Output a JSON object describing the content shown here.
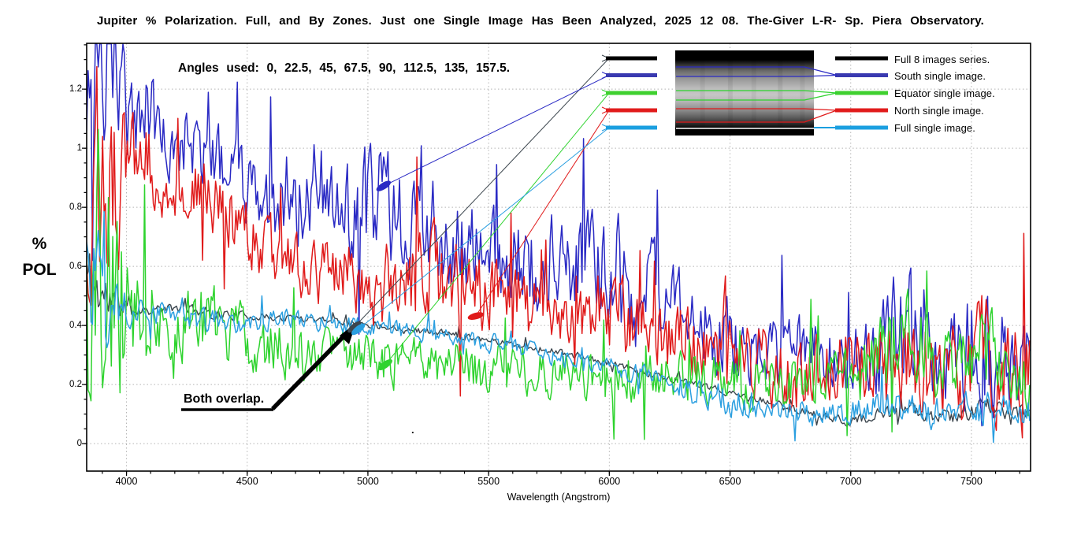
{
  "title": "Jupiter % Polarization. Full, and By Zones. Just one Single Image Has Been Analyzed, 2025 12 08. The-Giver L-R- Sp. Piera Observatory.",
  "annotations": {
    "angles_note": "Angles used: 0, 22.5, 45, 67.5, 90, 112.5, 135, 157.5.",
    "both_overlap": "Both overlap.",
    "stray_mark": "."
  },
  "axes": {
    "y_label_line1": "%",
    "y_label_line2": "POL",
    "x_label": "Wavelength (Angstrom)"
  },
  "chart_data": {
    "type": "line",
    "title": "Jupiter % Polarization, full disk and by zones, single image 2025 12 08",
    "xlabel": "Wavelength (Angstrom)",
    "ylabel": "% POL",
    "xlim": [
      3835,
      7745
    ],
    "ylim": [
      -0.093,
      1.355
    ],
    "x_ticks": [
      4000,
      4500,
      5000,
      5500,
      6000,
      6500,
      7000,
      7500
    ],
    "x_minor_step": 100,
    "y_ticks": [
      0,
      0.2,
      0.4,
      0.6,
      0.8,
      1,
      1.2
    ],
    "y_tick_labels": [
      "0",
      "0.2",
      "0.4",
      "0.6",
      "0.8",
      "1",
      "1.2"
    ],
    "y_minor_step": 0.05,
    "grid": true,
    "grid_color": "#b3b3b3",
    "legend_position": "top-right-inside",
    "series": [
      {
        "label": "Full 8 images series.",
        "color": "#000000",
        "line_color": "#3c464e",
        "anchors": [
          [
            3835,
            0.56,
            0.14
          ],
          [
            3900,
            0.5,
            0.1
          ],
          [
            3980,
            0.47,
            0.05
          ],
          [
            4060,
            0.455,
            0.02
          ],
          [
            4150,
            0.455,
            0.015
          ],
          [
            4250,
            0.46,
            0.015
          ],
          [
            4350,
            0.44,
            0.02
          ],
          [
            4450,
            0.435,
            0.015
          ],
          [
            4550,
            0.43,
            0.012
          ],
          [
            4650,
            0.425,
            0.012
          ],
          [
            4750,
            0.425,
            0.012
          ],
          [
            4850,
            0.42,
            0.012
          ],
          [
            4950,
            0.41,
            0.012
          ],
          [
            5050,
            0.4,
            0.012
          ],
          [
            5150,
            0.39,
            0.012
          ],
          [
            5250,
            0.38,
            0.012
          ],
          [
            5350,
            0.37,
            0.012
          ],
          [
            5450,
            0.36,
            0.012
          ],
          [
            5550,
            0.345,
            0.012
          ],
          [
            5650,
            0.33,
            0.012
          ],
          [
            5750,
            0.315,
            0.012
          ],
          [
            5850,
            0.3,
            0.012
          ],
          [
            5950,
            0.28,
            0.012
          ],
          [
            6050,
            0.26,
            0.012
          ],
          [
            6150,
            0.24,
            0.012
          ],
          [
            6250,
            0.22,
            0.012
          ],
          [
            6350,
            0.2,
            0.012
          ],
          [
            6450,
            0.18,
            0.012
          ],
          [
            6550,
            0.16,
            0.012
          ],
          [
            6650,
            0.14,
            0.015
          ],
          [
            6750,
            0.12,
            0.015
          ],
          [
            6850,
            0.1,
            0.015
          ],
          [
            6950,
            0.08,
            0.015
          ],
          [
            7050,
            0.08,
            0.02
          ],
          [
            7150,
            0.1,
            0.025
          ],
          [
            7250,
            0.11,
            0.025
          ],
          [
            7350,
            0.09,
            0.02
          ],
          [
            7450,
            0.09,
            0.025
          ],
          [
            7550,
            0.13,
            0.03
          ],
          [
            7650,
            0.11,
            0.025
          ],
          [
            7745,
            0.1,
            0.025
          ]
        ]
      },
      {
        "label": "South single image.",
        "color": "#3939b0",
        "line_color": "#2a2ac4",
        "anchors": [
          [
            3835,
            1.28,
            0.3
          ],
          [
            3900,
            1.22,
            0.28
          ],
          [
            3980,
            1.18,
            0.22
          ],
          [
            4060,
            1.12,
            0.15
          ],
          [
            4150,
            1.08,
            0.14
          ],
          [
            4250,
            1.02,
            0.14
          ],
          [
            4350,
            0.97,
            0.13
          ],
          [
            4450,
            0.9,
            0.12
          ],
          [
            4550,
            0.84,
            0.12
          ],
          [
            4650,
            0.85,
            0.18
          ],
          [
            4750,
            0.88,
            0.18
          ],
          [
            4850,
            0.82,
            0.16
          ],
          [
            4950,
            0.78,
            0.18
          ],
          [
            5050,
            0.8,
            0.2
          ],
          [
            5150,
            0.76,
            0.16
          ],
          [
            5250,
            0.68,
            0.14
          ],
          [
            5350,
            0.66,
            0.14
          ],
          [
            5450,
            0.68,
            0.15
          ],
          [
            5550,
            0.63,
            0.16
          ],
          [
            5650,
            0.62,
            0.18
          ],
          [
            5750,
            0.6,
            0.16
          ],
          [
            5850,
            0.61,
            0.15
          ],
          [
            5950,
            0.62,
            0.16
          ],
          [
            6050,
            0.58,
            0.26
          ],
          [
            6150,
            0.5,
            0.18
          ],
          [
            6250,
            0.47,
            0.13
          ],
          [
            6350,
            0.43,
            0.12
          ],
          [
            6450,
            0.38,
            0.13
          ],
          [
            6550,
            0.34,
            0.12
          ],
          [
            6650,
            0.31,
            0.12
          ],
          [
            6750,
            0.31,
            0.12
          ],
          [
            6850,
            0.31,
            0.11
          ],
          [
            6950,
            0.29,
            0.11
          ],
          [
            7050,
            0.29,
            0.12
          ],
          [
            7150,
            0.34,
            0.18
          ],
          [
            7250,
            0.4,
            0.26
          ],
          [
            7350,
            0.31,
            0.16
          ],
          [
            7450,
            0.33,
            0.2
          ],
          [
            7550,
            0.34,
            0.26
          ],
          [
            7650,
            0.28,
            0.14
          ],
          [
            7745,
            0.3,
            0.12
          ]
        ]
      },
      {
        "label": "Equator single image.",
        "color": "#3fd02f",
        "line_color": "#2ed32e",
        "anchors": [
          [
            3835,
            0.62,
            0.52
          ],
          [
            3900,
            0.55,
            0.45
          ],
          [
            3980,
            0.48,
            0.32
          ],
          [
            4060,
            0.46,
            0.16
          ],
          [
            4150,
            0.44,
            0.13
          ],
          [
            4250,
            0.41,
            0.12
          ],
          [
            4350,
            0.42,
            0.12
          ],
          [
            4450,
            0.37,
            0.1
          ],
          [
            4550,
            0.34,
            0.1
          ],
          [
            4650,
            0.32,
            0.09
          ],
          [
            4750,
            0.31,
            0.09
          ],
          [
            4850,
            0.3,
            0.08
          ],
          [
            4950,
            0.29,
            0.08
          ],
          [
            5050,
            0.27,
            0.08
          ],
          [
            5150,
            0.28,
            0.08
          ],
          [
            5250,
            0.28,
            0.08
          ],
          [
            5350,
            0.26,
            0.08
          ],
          [
            5450,
            0.26,
            0.08
          ],
          [
            5550,
            0.25,
            0.08
          ],
          [
            5650,
            0.25,
            0.08
          ],
          [
            5750,
            0.24,
            0.08
          ],
          [
            5850,
            0.23,
            0.08
          ],
          [
            5950,
            0.23,
            0.08
          ],
          [
            6050,
            0.25,
            0.1
          ],
          [
            6150,
            0.24,
            0.09
          ],
          [
            6250,
            0.22,
            0.08
          ],
          [
            6350,
            0.22,
            0.08
          ],
          [
            6450,
            0.22,
            0.08
          ],
          [
            6550,
            0.21,
            0.08
          ],
          [
            6650,
            0.2,
            0.09
          ],
          [
            6750,
            0.2,
            0.1
          ],
          [
            6850,
            0.21,
            0.1
          ],
          [
            6950,
            0.23,
            0.1
          ],
          [
            7050,
            0.26,
            0.12
          ],
          [
            7150,
            0.3,
            0.14
          ],
          [
            7250,
            0.36,
            0.15
          ],
          [
            7350,
            0.28,
            0.12
          ],
          [
            7450,
            0.28,
            0.13
          ],
          [
            7550,
            0.33,
            0.17
          ],
          [
            7650,
            0.26,
            0.12
          ],
          [
            7745,
            0.22,
            0.11
          ]
        ]
      },
      {
        "label": "North single image.",
        "color": "#e11b1b",
        "line_color": "#e01a1a",
        "anchors": [
          [
            3835,
            0.92,
            0.38
          ],
          [
            3900,
            0.9,
            0.34
          ],
          [
            3980,
            0.86,
            0.26
          ],
          [
            4060,
            0.98,
            0.14
          ],
          [
            4150,
            0.88,
            0.12
          ],
          [
            4250,
            0.86,
            0.11
          ],
          [
            4350,
            0.84,
            0.11
          ],
          [
            4450,
            0.76,
            0.12
          ],
          [
            4550,
            0.68,
            0.11
          ],
          [
            4650,
            0.62,
            0.1
          ],
          [
            4750,
            0.57,
            0.11
          ],
          [
            4850,
            0.55,
            0.12
          ],
          [
            4950,
            0.56,
            0.13
          ],
          [
            5050,
            0.54,
            0.15
          ],
          [
            5150,
            0.56,
            0.13
          ],
          [
            5250,
            0.58,
            0.18
          ],
          [
            5350,
            0.52,
            0.15
          ],
          [
            5450,
            0.51,
            0.13
          ],
          [
            5550,
            0.53,
            0.12
          ],
          [
            5650,
            0.47,
            0.13
          ],
          [
            5750,
            0.45,
            0.12
          ],
          [
            5850,
            0.46,
            0.12
          ],
          [
            5950,
            0.47,
            0.13
          ],
          [
            6050,
            0.43,
            0.14
          ],
          [
            6150,
            0.38,
            0.12
          ],
          [
            6250,
            0.35,
            0.12
          ],
          [
            6350,
            0.33,
            0.12
          ],
          [
            6450,
            0.3,
            0.12
          ],
          [
            6550,
            0.3,
            0.12
          ],
          [
            6650,
            0.27,
            0.12
          ],
          [
            6750,
            0.23,
            0.12
          ],
          [
            6850,
            0.24,
            0.12
          ],
          [
            6950,
            0.26,
            0.13
          ],
          [
            7050,
            0.24,
            0.15
          ],
          [
            7150,
            0.24,
            0.15
          ],
          [
            7250,
            0.28,
            0.16
          ],
          [
            7350,
            0.24,
            0.15
          ],
          [
            7450,
            0.22,
            0.16
          ],
          [
            7550,
            0.29,
            0.19
          ],
          [
            7650,
            0.26,
            0.16
          ],
          [
            7745,
            0.22,
            0.2
          ]
        ]
      },
      {
        "label": "Full single image.",
        "color": "#1b9fe0",
        "line_color": "#2b9fe0",
        "anchors": [
          [
            3835,
            0.55,
            0.28
          ],
          [
            3900,
            0.5,
            0.16
          ],
          [
            3980,
            0.46,
            0.09
          ],
          [
            4060,
            0.445,
            0.05
          ],
          [
            4150,
            0.435,
            0.045
          ],
          [
            4250,
            0.425,
            0.04
          ],
          [
            4350,
            0.415,
            0.04
          ],
          [
            4450,
            0.405,
            0.04
          ],
          [
            4550,
            0.41,
            0.035
          ],
          [
            4650,
            0.42,
            0.035
          ],
          [
            4750,
            0.415,
            0.03
          ],
          [
            4850,
            0.41,
            0.03
          ],
          [
            4950,
            0.4,
            0.03
          ],
          [
            5050,
            0.39,
            0.03
          ],
          [
            5150,
            0.38,
            0.03
          ],
          [
            5250,
            0.37,
            0.03
          ],
          [
            5350,
            0.36,
            0.03
          ],
          [
            5450,
            0.35,
            0.03
          ],
          [
            5550,
            0.335,
            0.03
          ],
          [
            5650,
            0.32,
            0.03
          ],
          [
            5750,
            0.3,
            0.03
          ],
          [
            5850,
            0.285,
            0.03
          ],
          [
            5950,
            0.27,
            0.03
          ],
          [
            6050,
            0.25,
            0.03
          ],
          [
            6150,
            0.23,
            0.03
          ],
          [
            6250,
            0.21,
            0.035
          ],
          [
            6350,
            0.18,
            0.05
          ],
          [
            6450,
            0.16,
            0.05
          ],
          [
            6550,
            0.14,
            0.05
          ],
          [
            6650,
            0.13,
            0.04
          ],
          [
            6750,
            0.11,
            0.04
          ],
          [
            6850,
            0.1,
            0.04
          ],
          [
            6950,
            0.1,
            0.045
          ],
          [
            7050,
            0.12,
            0.05
          ],
          [
            7150,
            0.13,
            0.055
          ],
          [
            7250,
            0.12,
            0.05
          ],
          [
            7350,
            0.1,
            0.05
          ],
          [
            7450,
            0.11,
            0.055
          ],
          [
            7550,
            0.12,
            0.055
          ],
          [
            7650,
            0.11,
            0.05
          ],
          [
            7745,
            0.1,
            0.05
          ]
        ]
      }
    ],
    "callout_markers": [
      {
        "series": 0,
        "x": 4944,
        "y": 0.395,
        "rot": -38
      },
      {
        "series": 1,
        "x": 5065,
        "y": 0.872,
        "rot": -32
      },
      {
        "series": 2,
        "x": 5072,
        "y": 0.267,
        "rot": -35
      },
      {
        "series": 3,
        "x": 5447,
        "y": 0.432,
        "rot": -15
      },
      {
        "series": 4,
        "x": 4960,
        "y": 0.387,
        "rot": -38
      }
    ],
    "inset_image": {
      "description": "grayscale Jupiter spectrum strip with zone boundary lines",
      "zones": [
        "south (blue lines)",
        "equator (green lines)",
        "north (red lines)",
        "full (white line)"
      ]
    }
  }
}
